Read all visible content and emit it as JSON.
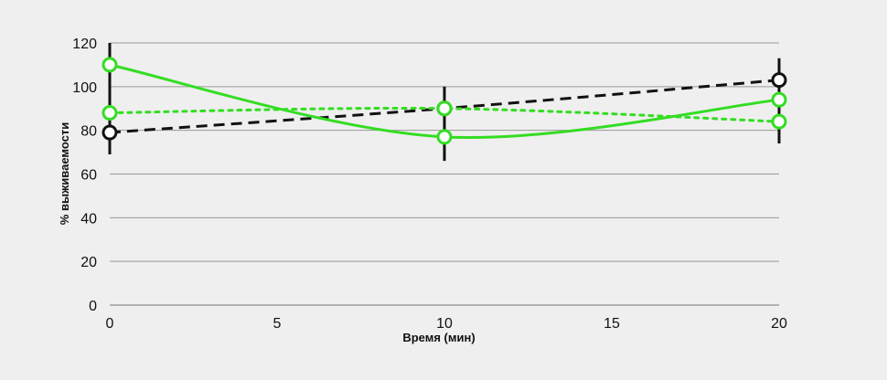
{
  "chart_data": {
    "type": "line",
    "title": "",
    "xlabel": "Время (мин)",
    "ylabel": "% выживаемости",
    "xlim": [
      0,
      20
    ],
    "ylim": [
      0,
      120
    ],
    "x_ticks": [
      0,
      5,
      10,
      15,
      20
    ],
    "y_ticks": [
      0,
      20,
      40,
      60,
      80,
      100,
      120
    ],
    "grid": "horizontal",
    "legend": "none",
    "series": [
      {
        "style": "dashed",
        "color": "#111111",
        "x": [
          0,
          10,
          20
        ],
        "y": [
          79,
          90,
          103
        ],
        "error": [
          {
            "low": 69,
            "high": 120
          },
          {
            "low": 66,
            "high": 100
          },
          {
            "low": 93,
            "high": 113
          }
        ]
      },
      {
        "style": "dotted",
        "color": "#33dd22",
        "x": [
          0,
          10,
          20
        ],
        "y": [
          88,
          90,
          84
        ]
      },
      {
        "style": "solid",
        "color": "#33dd22",
        "x": [
          0,
          10,
          20
        ],
        "y": [
          110,
          77,
          94
        ],
        "error": [
          null,
          null,
          {
            "low": 74,
            "high": 94
          }
        ]
      }
    ]
  }
}
